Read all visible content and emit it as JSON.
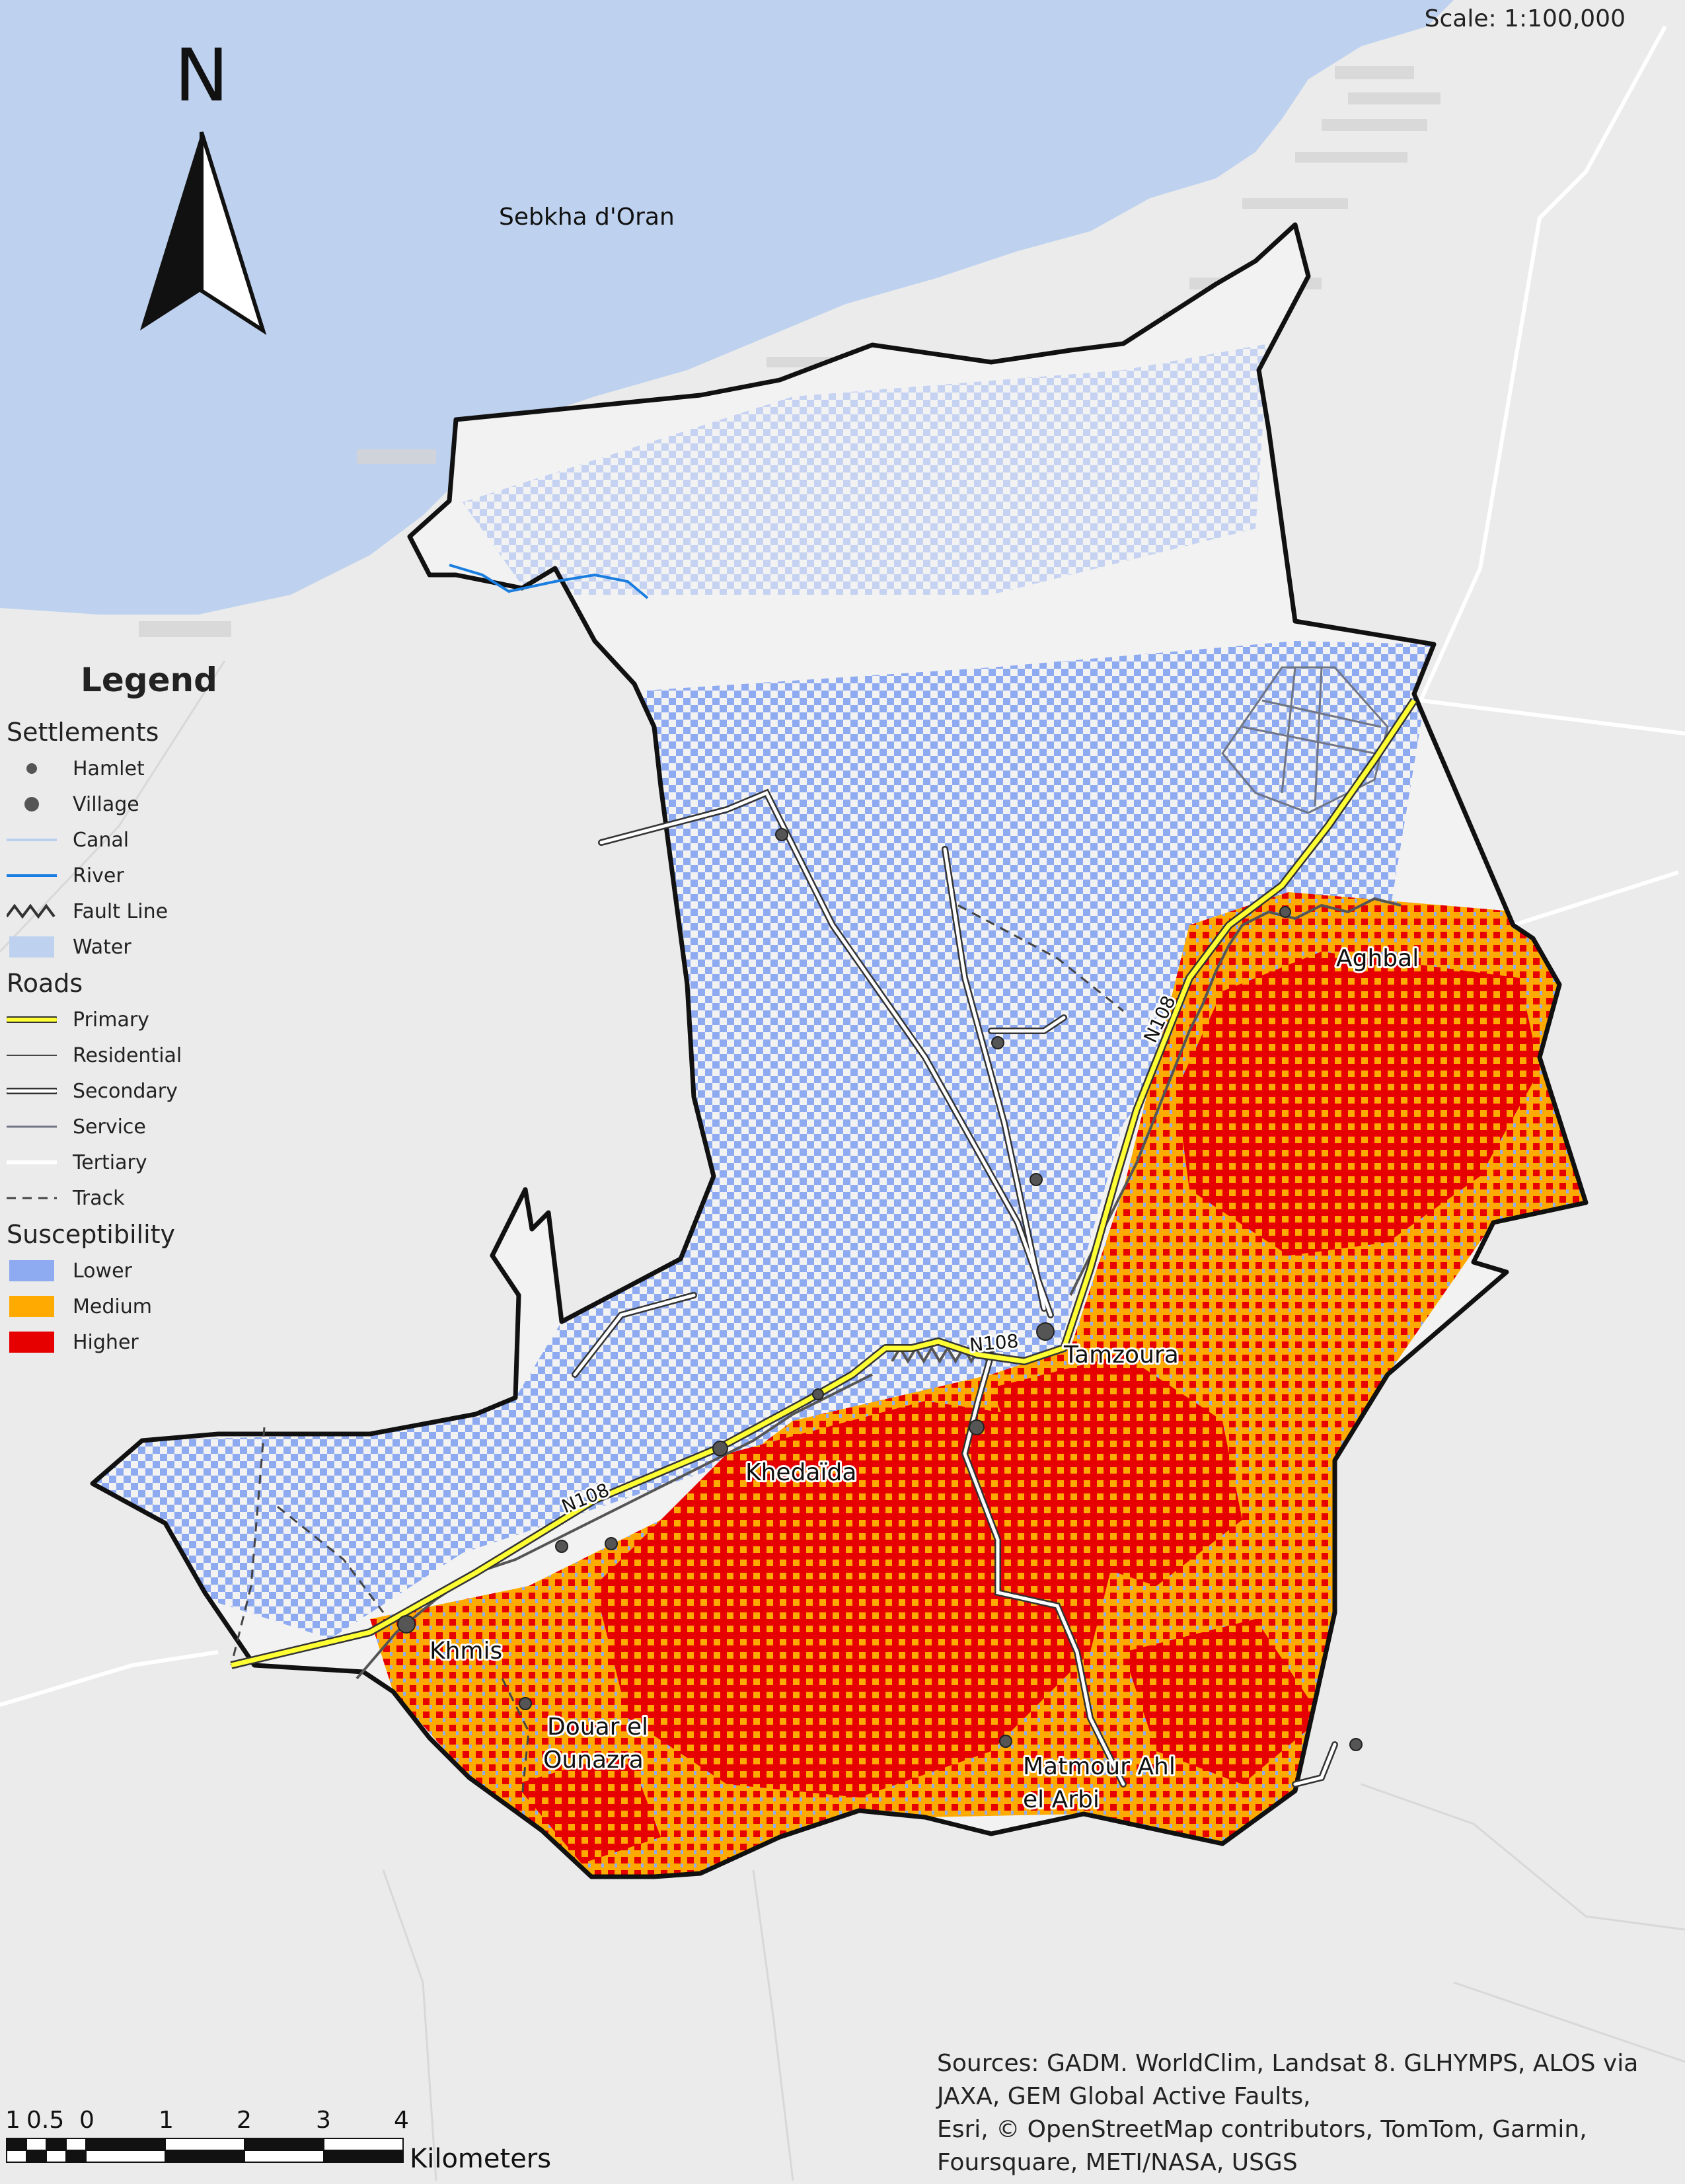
{
  "scale_text": "Scale: 1:100,000",
  "north_label": "N",
  "places": {
    "sebkha": "Sebkha d'Oran",
    "aghbal": "Aghbal",
    "tamzoura": "Tamzoura",
    "khedaida": "Khedaïda",
    "khmis": "Khmis",
    "douar_line1": "Douar el",
    "douar_line2": "Ounazra",
    "matmour_line1": "Matmour Ahl",
    "matmour_line2": "el Arbi",
    "road_n108": "N108"
  },
  "legend": {
    "title": "Legend",
    "settlements": {
      "heading": "Settlements",
      "items": [
        {
          "label": "Hamlet",
          "icon": "small-dot"
        },
        {
          "label": "Village",
          "icon": "large-dot"
        },
        {
          "label": "Canal",
          "icon": "light-blue-line"
        },
        {
          "label": "River",
          "icon": "blue-line"
        },
        {
          "label": "Fault Line",
          "icon": "zigzag-line"
        },
        {
          "label": "Water",
          "icon": "light-blue-box"
        }
      ]
    },
    "roads": {
      "heading": "Roads",
      "items": [
        {
          "label": "Primary",
          "icon": "yellow-line"
        },
        {
          "label": "Residential",
          "icon": "thin-gray-line"
        },
        {
          "label": "Secondary",
          "icon": "cased-white-line"
        },
        {
          "label": "Service",
          "icon": "gray-line"
        },
        {
          "label": "Tertiary",
          "icon": "white-line"
        },
        {
          "label": "Track",
          "icon": "dashed-line"
        }
      ]
    },
    "susceptibility": {
      "heading": "Susceptibility",
      "items": [
        {
          "label": "Lower",
          "color": "#8eaaf0"
        },
        {
          "label": "Medium",
          "color": "#ffaa00"
        },
        {
          "label": "Higher",
          "color": "#e60000"
        }
      ]
    }
  },
  "sources": {
    "line1": "Sources: GADM. WorldClim, Landsat 8. GLHYMPS, ALOS via",
    "line2": "JAXA, GEM Global Active Faults,",
    "line3": "Esri, © OpenStreetMap contributors, TomTom, Garmin,",
    "line4": "Foursquare, METI/NASA, USGS"
  },
  "scalebar": {
    "ticks": [
      "1",
      "0.5",
      "0",
      "1",
      "2",
      "3",
      "4"
    ],
    "unit": "Kilometers"
  },
  "colors": {
    "water": "#bed2ef",
    "land": "#ebebeb",
    "lower": "#8eaaf0",
    "medium": "#ffaa00",
    "higher": "#e60000",
    "primary_road": "#ffff33",
    "river": "#1a7ee0"
  }
}
